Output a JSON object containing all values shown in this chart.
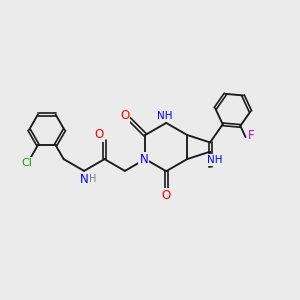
{
  "background_color": "#ebebeb",
  "bond_color": "#1a1a1a",
  "atom_colors": {
    "N": "#0000ff",
    "O": "#ff0000",
    "Cl": "#00aa00",
    "F": "#cc00cc",
    "H": "#7a7a7a",
    "C": "#1a1a1a"
  },
  "font_size": 7.5,
  "lw": 1.35,
  "dlw": 1.2,
  "doffset": 0.055
}
